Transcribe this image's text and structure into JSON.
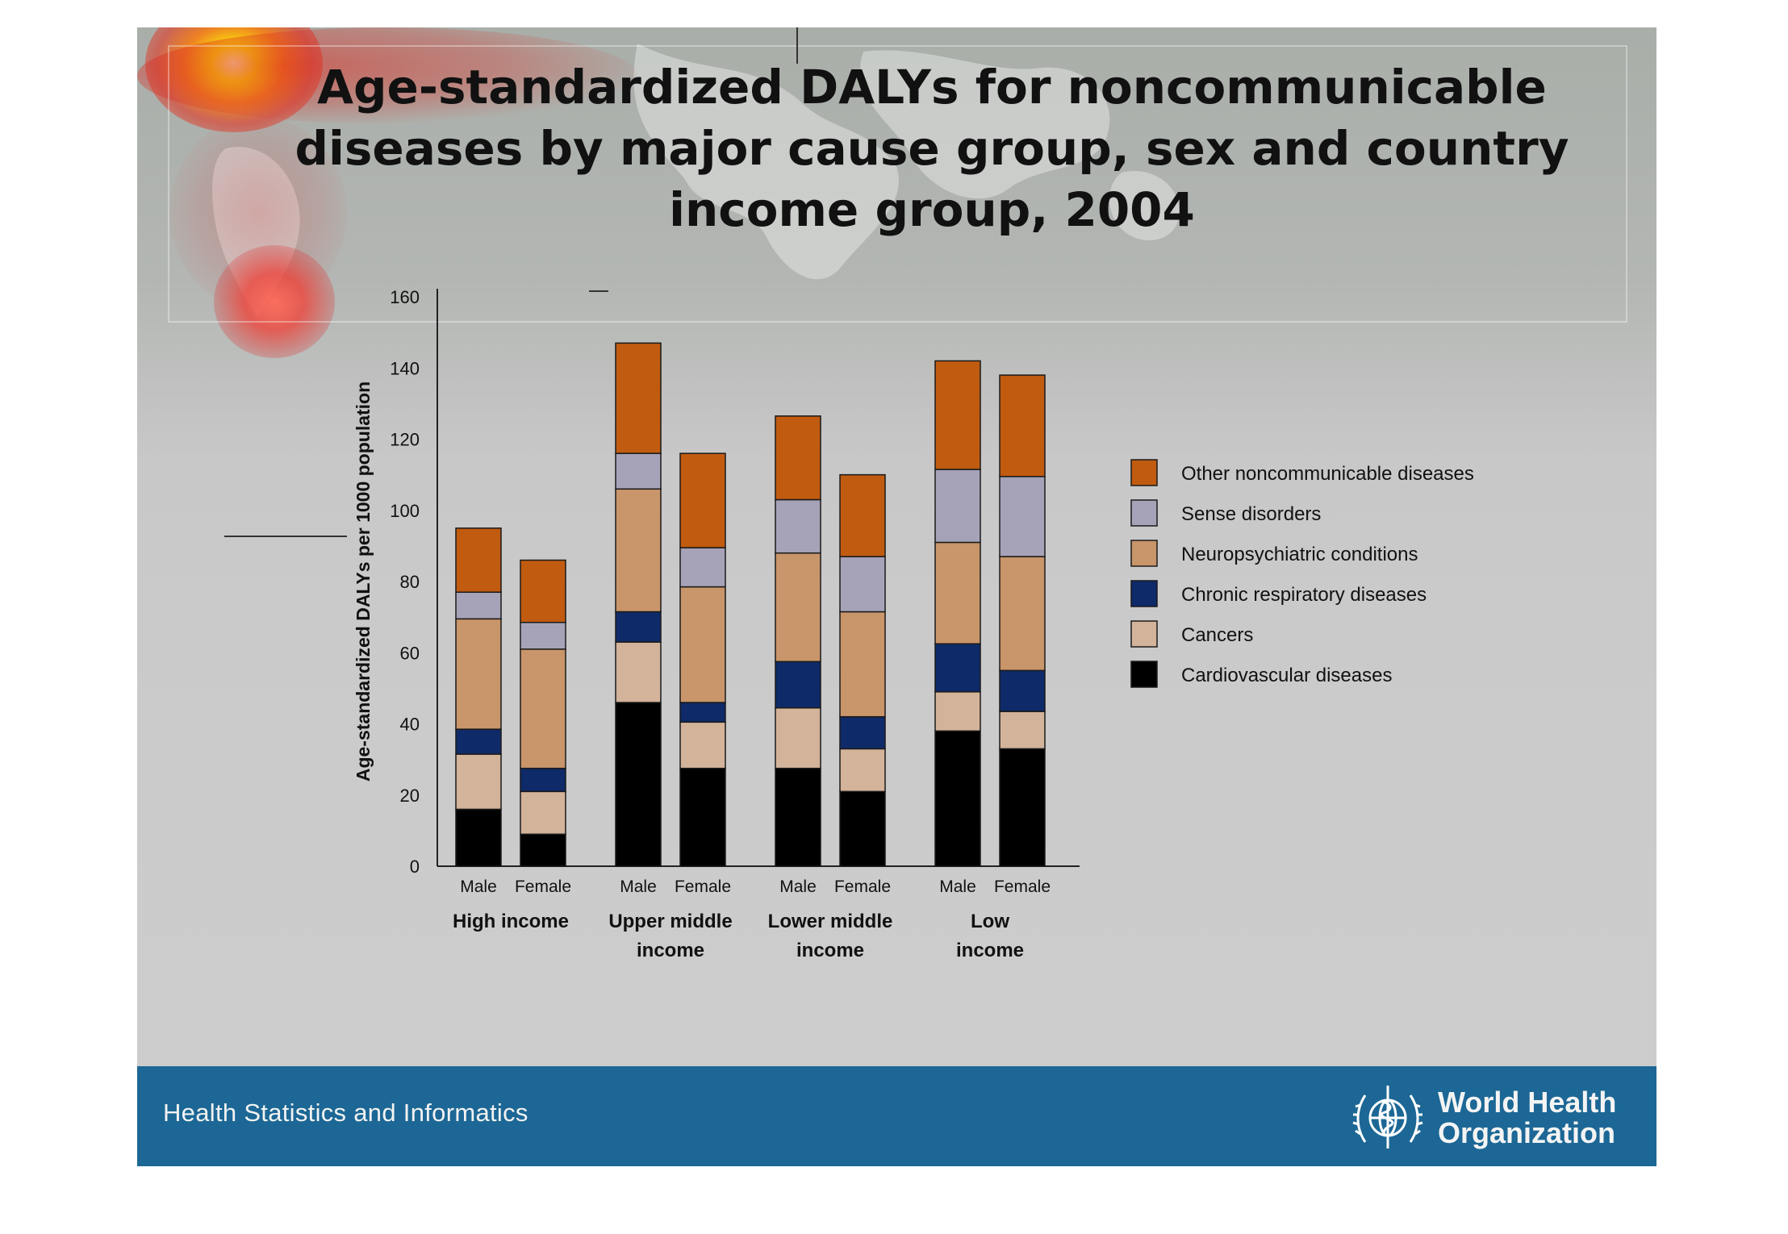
{
  "slide_title": "Age-standardized DALYs for noncommunicable diseases by major cause group,  sex and country income group, 2004",
  "footer": {
    "text": "Health Statistics and Informatics",
    "org_name_line1": "World Health",
    "org_name_line2": "Organization"
  },
  "colors": {
    "Cardiovascular diseases": "#000000",
    "Cancers": "#d3b39a",
    "Chronic respiratory diseases": "#0f2a68",
    "Neuropsychiatric conditions": "#c9956a",
    "Sense disorders": "#a6a3b8",
    "Other noncommunicable diseases": "#c05b10",
    "footer_bar": "#1c6795"
  },
  "chart_data": {
    "type": "bar",
    "stacked": true,
    "ylabel": "Age-standardized DALYs per 1000 population",
    "ylim": [
      0,
      160
    ],
    "yticks": [
      "0",
      "20",
      "40",
      "60",
      "80",
      "100",
      "120",
      "140",
      "160"
    ],
    "groups": [
      "High income",
      "Upper middle income",
      "Lower middle income",
      "Low income"
    ],
    "group_label_lines": [
      [
        "High income"
      ],
      [
        "Upper middle",
        "income"
      ],
      [
        "Lower middle",
        "income"
      ],
      [
        "Low",
        "income"
      ]
    ],
    "sexes": [
      "Male",
      "Female"
    ],
    "categories": [
      "High income Male",
      "High income Female",
      "Upper middle income Male",
      "Upper middle income Female",
      "Lower middle income Male",
      "Lower middle income Female",
      "Low income Male",
      "Low income Female"
    ],
    "series": [
      {
        "name": "Cardiovascular diseases",
        "values": [
          16,
          9,
          46,
          27.5,
          27.5,
          21,
          38,
          33
        ]
      },
      {
        "name": "Cancers",
        "values": [
          15.5,
          12,
          17,
          13,
          17,
          12,
          11,
          10.5
        ]
      },
      {
        "name": "Chronic respiratory diseases",
        "values": [
          7,
          6.5,
          8.5,
          5.5,
          13,
          9,
          13.5,
          11.5
        ]
      },
      {
        "name": "Neuropsychiatric conditions",
        "values": [
          31,
          33.5,
          34.5,
          32.5,
          30.5,
          29.5,
          28.5,
          32
        ]
      },
      {
        "name": "Sense disorders",
        "values": [
          7.5,
          7.5,
          10,
          11,
          15,
          15.5,
          20.5,
          22.5
        ]
      },
      {
        "name": "Other noncommunicable diseases",
        "values": [
          18,
          17.5,
          31,
          26.5,
          23.5,
          23,
          30.5,
          28.5
        ]
      }
    ],
    "legend_order": [
      "Other noncommunicable diseases",
      "Sense disorders",
      "Neuropsychiatric conditions",
      "Chronic respiratory diseases",
      "Cancers",
      "Cardiovascular diseases"
    ],
    "legend_position": "right",
    "grid": false
  }
}
